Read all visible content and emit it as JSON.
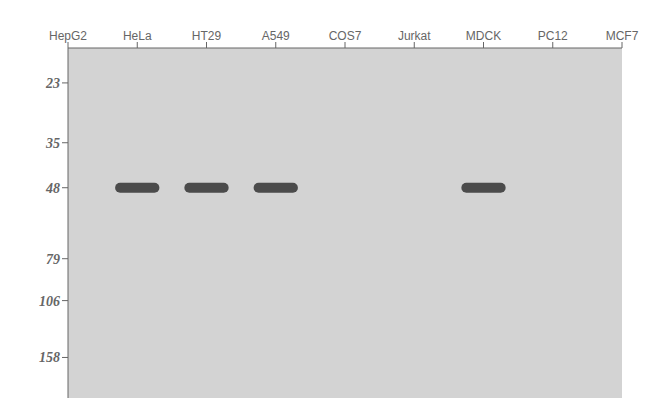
{
  "chart_data": {
    "type": "scatter",
    "categories": [
      "HepG2",
      "HeLa",
      "HT29",
      "A549",
      "COS7",
      "Jurkat",
      "MDCK",
      "PC12",
      "MCF7"
    ],
    "values": [
      null,
      48,
      48,
      48,
      null,
      null,
      48,
      null,
      null
    ],
    "ylim": [
      18,
      210
    ],
    "yticks": [
      158,
      106,
      79,
      48,
      35,
      23
    ],
    "log": "y",
    "grid": false,
    "marker": "band"
  }
}
